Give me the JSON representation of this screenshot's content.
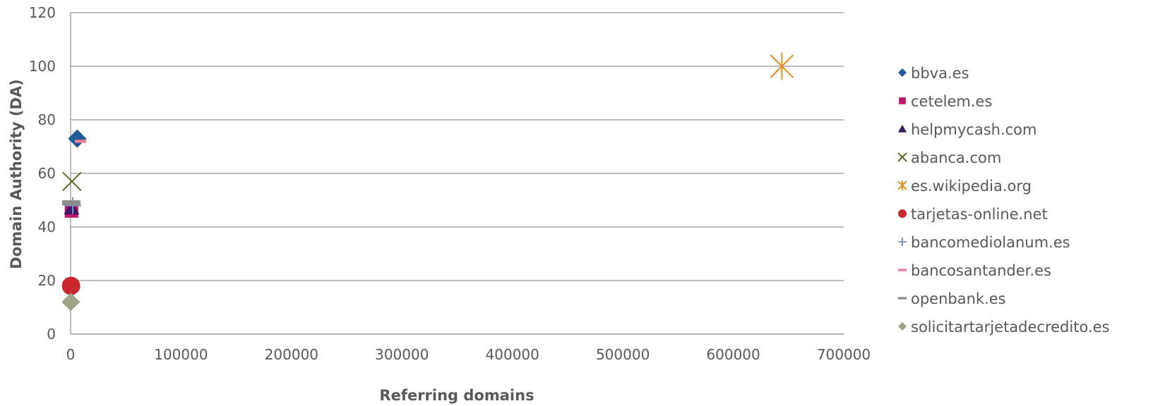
{
  "chart_data": {
    "type": "scatter",
    "title": "",
    "xlabel": "Referring domains",
    "ylabel": "Domain Authority (DA)",
    "xlim": [
      0,
      700000
    ],
    "ylim": [
      0,
      120
    ],
    "x_ticks": [
      "0",
      "100000",
      "200000",
      "300000",
      "400000",
      "500000",
      "600000",
      "700000"
    ],
    "y_ticks": [
      "0",
      "20",
      "40",
      "60",
      "80",
      "100",
      "120"
    ],
    "grid": "horizontal",
    "legend_position": "right",
    "series": [
      {
        "name": "bbva.es",
        "marker": "diamond",
        "color": "#1F5C99",
        "points": [
          {
            "x": 6000,
            "y": 73
          }
        ]
      },
      {
        "name": "cetelem.es",
        "marker": "square",
        "color": "#C0136A",
        "points": [
          {
            "x": 800,
            "y": 46
          }
        ]
      },
      {
        "name": "helpmycash.com",
        "marker": "triangle",
        "color": "#3F1565",
        "points": [
          {
            "x": 900,
            "y": 47
          }
        ]
      },
      {
        "name": "abanca.com",
        "marker": "x",
        "color": "#5A6B28",
        "points": [
          {
            "x": 1200,
            "y": 57
          }
        ]
      },
      {
        "name": "es.wikipedia.org",
        "marker": "star",
        "color": "#E0901E",
        "points": [
          {
            "x": 644000,
            "y": 100
          }
        ]
      },
      {
        "name": "tarjetas-online.net",
        "marker": "circle",
        "color": "#C8282D",
        "points": [
          {
            "x": 400,
            "y": 18
          }
        ]
      },
      {
        "name": "bancomediolanum.es",
        "marker": "plus",
        "color": "#8096C8",
        "points": [
          {
            "x": 2000,
            "y": 48
          }
        ]
      },
      {
        "name": "bancosantander.es",
        "marker": "dash",
        "color": "#F07C9A",
        "points": [
          {
            "x": 9000,
            "y": 72
          }
        ]
      },
      {
        "name": "openbank.es",
        "marker": "dash",
        "color": "#8C8C8C",
        "points": [
          {
            "x": 600,
            "y": 49
          }
        ]
      },
      {
        "name": "solicitartarjetadecredito.es",
        "marker": "diamond",
        "color": "#9EA487",
        "points": [
          {
            "x": 200,
            "y": 12
          }
        ]
      }
    ]
  },
  "colors": {
    "grid": "#A6A6A6",
    "text": "#595959"
  }
}
